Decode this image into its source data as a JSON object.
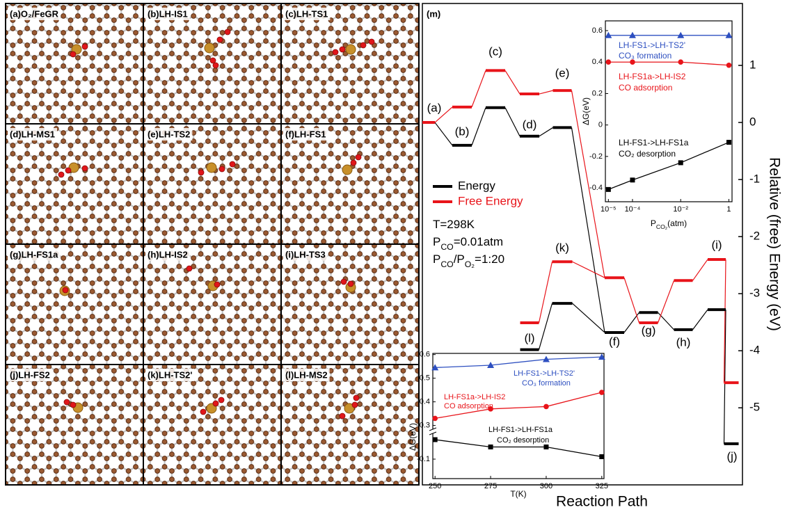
{
  "panels": [
    "(a)O₂/FeGR",
    "(b)LH-IS1",
    "(c)LH-TS1",
    "(d)LH-MS1",
    "(e)LH-TS2",
    "(f)LH-FS1",
    "(g)LH-FS1a",
    "(h)LH-IS2",
    "(i)LH-TS3",
    "(j)LH-FS2",
    "(k)LH-TS2'",
    "(l)LH-MS2"
  ],
  "chart_data": [
    {
      "type": "energy-profile",
      "label": "(m)",
      "xlabel": "Reaction Path",
      "ylabel": "Relative (free) Energy (eV)",
      "categories": [
        "(a)",
        "(b)",
        "(c)",
        "(d)",
        "(e)",
        "(f)",
        "(g)",
        "(h)",
        "(i)",
        "(j)",
        "(k)",
        "(l)"
      ],
      "series": [
        {
          "name": "Energy",
          "color": "#000000",
          "values": [
            0,
            -0.4,
            0.26,
            -0.24,
            -0.09,
            -3.68,
            -3.33,
            -3.63,
            -3.28,
            -5.63,
            -3.17,
            -3.98
          ]
        },
        {
          "name": "Free Energy",
          "color": "#e8141a",
          "values": [
            0,
            0.27,
            0.91,
            0.5,
            0.56,
            -2.72,
            -3.51,
            -2.77,
            -2.4,
            -4.56,
            -2.44,
            -3.51
          ]
        }
      ],
      "ylim": [
        -6.35,
        2.085
      ],
      "yticks": [
        1,
        0,
        -1,
        -2,
        -3,
        -4,
        -5
      ],
      "annotations": [
        [
          "T=298K"
        ],
        [
          "P",
          {
            "text": "CO",
            "sub": true
          },
          "=0.01atm"
        ],
        [
          "P",
          {
            "text": "CO",
            "sub": true
          },
          "/P",
          {
            "text": "O₂",
            "sub": true
          },
          "=1:20"
        ]
      ]
    },
    {
      "type": "line",
      "xscale": "log",
      "xlabel": [
        "P",
        {
          "text": "CO₂",
          "sub": true
        },
        "(atm)"
      ],
      "ylabel": "ΔG(eV)",
      "x": [
        1e-05,
        0.0001,
        0.01,
        1
      ],
      "xlim": [
        7.5e-06,
        1.35
      ],
      "xticks": [
        {
          "value": 1e-05,
          "label": "10⁻⁵"
        },
        {
          "value": 0.0001,
          "label": "10⁻⁴"
        },
        {
          "value": 0.01,
          "label": "10⁻²"
        },
        1
      ],
      "ylim": [
        -0.488,
        0.662
      ],
      "yticks": [
        -0.4,
        -0.2,
        0,
        0.2,
        0.4,
        0.6
      ],
      "series": [
        {
          "color": "#2d4fc0",
          "marker": "triangle",
          "values": [
            0.57,
            0.57,
            0.57,
            0.57
          ]
        },
        {
          "color": "#e8141a",
          "marker": "circle",
          "values": [
            0.4,
            0.4,
            0.4,
            0.38
          ]
        },
        {
          "color": "#000000",
          "marker": "square",
          "values": [
            -0.41,
            -0.35,
            -0.24,
            -0.11
          ]
        }
      ],
      "annotations": [
        {
          "text": "LH-FS1->LH-TS2'",
          "color": "#2d4fc0"
        },
        {
          "text": "CO₃ formation",
          "color": "#2d4fc0"
        },
        {
          "text": "LH-FS1a->LH-IS2",
          "color": "#e8141a"
        },
        {
          "text": "CO adsorption",
          "color": "#e8141a"
        },
        {
          "text": "LH-FS1->LH-FS1a",
          "color": "#000000"
        },
        {
          "text": "CO₂ desorption",
          "color": "#000000"
        }
      ]
    },
    {
      "type": "line",
      "xscale": "linear",
      "xlabel": [
        "T(K)"
      ],
      "ylabel": "ΔG(eV)",
      "x": [
        250,
        275,
        300,
        325
      ],
      "xlim": [
        249,
        326
      ],
      "xticks": [
        250,
        275,
        300,
        325
      ],
      "ylim": [
        -0.14,
        0.605
      ],
      "ybreak": [
        -0.05,
        0.29
      ],
      "yticks": [
        -0.1,
        0.3,
        0.4,
        0.5,
        0.6
      ],
      "series": [
        {
          "color": "#2d4fc0",
          "marker": "triangle",
          "values": [
            0.545,
            0.555,
            0.58,
            0.59
          ]
        },
        {
          "color": "#e8141a",
          "marker": "circle",
          "values": [
            0.33,
            0.37,
            0.38,
            0.44
          ]
        },
        {
          "color": "#000000",
          "marker": "square",
          "values": [
            -0.06,
            -0.075,
            -0.075,
            -0.095
          ]
        }
      ],
      "annotations": [
        {
          "text": "LH-FS1->LH-TS2'",
          "color": "#2d4fc0"
        },
        {
          "text": "CO₃ formation",
          "color": "#2d4fc0"
        },
        {
          "text": "LH-FS1a->LH-IS2",
          "color": "#e8141a"
        },
        {
          "text": "CO adsorption",
          "color": "#e8141a"
        },
        {
          "text": "LH-FS1->LH-FS1a",
          "color": "#000000"
        },
        {
          "text": "CO₂ desorption",
          "color": "#000000"
        }
      ]
    }
  ]
}
